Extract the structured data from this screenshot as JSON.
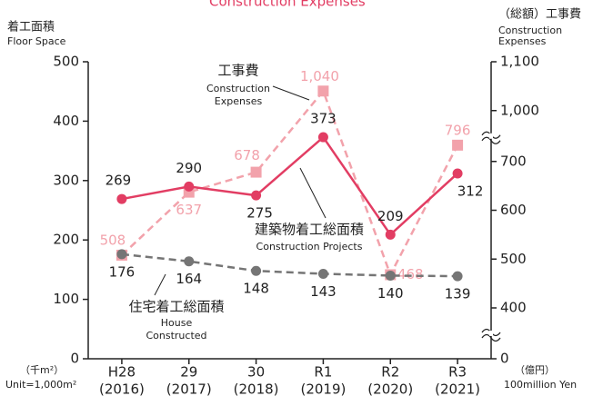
{
  "chart_data": {
    "type": "line",
    "top_caption": "Construction Expenses",
    "y_title": "着工面積",
    "y_title_en": "Floor Space",
    "y2_title": "（総額）工事費",
    "y2_title_en_1": "Construction",
    "y2_title_en_2": "Expenses",
    "y_unit": "（千m²）",
    "y_unit_en": "Unit=1,000m²",
    "y2_unit": "（億円）",
    "y2_unit_en": "100million Yen",
    "categories": [
      "H28",
      "29",
      "30",
      "R1",
      "R2",
      "R3"
    ],
    "category_years": [
      "(2016)",
      "(2017)",
      "(2018)",
      "(2019)",
      "(2020)",
      "(2021)"
    ],
    "ylim": [
      0,
      500
    ],
    "yticks": [
      0,
      100,
      200,
      300,
      400,
      500
    ],
    "y2lim": [
      0,
      1100
    ],
    "y2ticks": [
      0,
      400,
      500,
      600,
      700,
      {
        "value": 1000,
        "label": "1,000"
      },
      {
        "value": 1100,
        "label": "1,100"
      }
    ],
    "y2_breaks": [
      [
        0,
        400
      ],
      [
        700,
        1000
      ]
    ],
    "series": [
      {
        "name": "建築物着工総面積",
        "name_en": "Construction Projects",
        "color": "#e23d63",
        "dashed": false,
        "marker": "circle",
        "values": [
          269,
          290,
          275,
          373,
          209,
          312
        ]
      },
      {
        "name": "工事費",
        "name_en_1": "Construction",
        "name_en_2": "Expenses",
        "color": "#f2a2ab",
        "dashed": true,
        "marker": "square",
        "axis": "y2",
        "values": [
          508,
          637,
          678,
          1040,
          468,
          796
        ],
        "value_labels": [
          "508",
          "637",
          "678",
          "1,040",
          "468",
          "796"
        ]
      },
      {
        "name": "住宅着工総面積",
        "name_en_1": "House",
        "name_en_2": "Constructed",
        "color": "#757575",
        "dashed": true,
        "marker": "circle",
        "values": [
          176,
          164,
          148,
          143,
          140,
          139
        ]
      }
    ]
  }
}
